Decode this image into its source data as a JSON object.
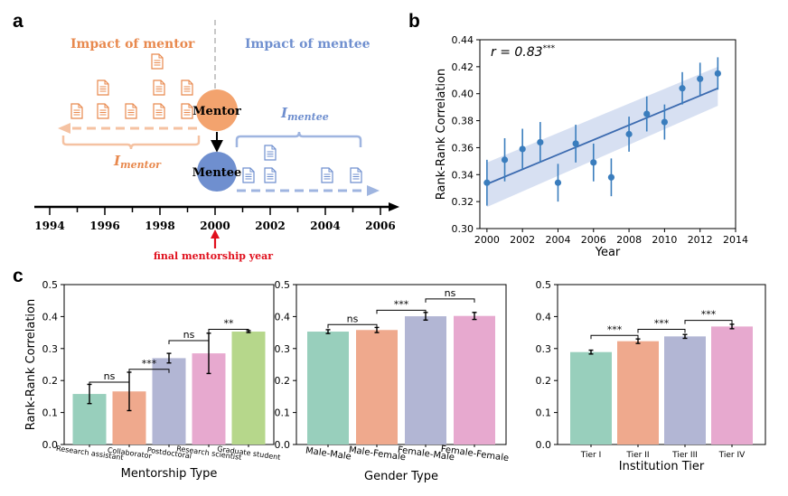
{
  "colors": {
    "mentor_orange": "#e8894e",
    "mentor_light": "#f5c2a2",
    "mentee_blue": "#6f8fcf",
    "mentee_light": "#9fb5e0",
    "line_blue": "#3c6bb0",
    "band": "#c9d6ee",
    "point": "#3a7dbd",
    "red": "#e0101d",
    "green": "#98cfbc",
    "salmon": "#efa98d",
    "lavender": "#b2b6d4",
    "pink": "#e7a9cf",
    "lime": "#b6d78b"
  },
  "panels": {
    "a": "a",
    "b": "b",
    "c": "c"
  },
  "diagram": {
    "impact_mentor": "Impact of mentor",
    "impact_mentee": "Impact of mentee",
    "mentor_node": "Mentor",
    "mentee_node": "Mentee",
    "i_mentor_base": "I",
    "i_mentor_sub": "mentor",
    "i_mentee_base": "I",
    "i_mentee_sub": "mentee",
    "years": [
      "1994",
      "1996",
      "1998",
      "2000",
      "2002",
      "2004",
      "2006"
    ],
    "final_year_label": "final mentorship year",
    "paper_icon": "document-icon"
  },
  "chart_data": [
    {
      "id": "b",
      "type": "scatter",
      "annotation": "r = 0.83",
      "annotation_stars": "***",
      "xlabel": "Year",
      "ylabel": "Rank-Rank Correlation",
      "xlim": [
        1999.6,
        2014
      ],
      "ylim": [
        0.3,
        0.44
      ],
      "xticks": [
        2000,
        2002,
        2004,
        2006,
        2008,
        2010,
        2012,
        2014
      ],
      "yticks": [
        "0.30",
        "0.32",
        "0.34",
        "0.36",
        "0.38",
        "0.40",
        "0.42",
        "0.44"
      ],
      "x": [
        2000,
        2001,
        2002,
        2003,
        2004,
        2005,
        2006,
        2007,
        2008,
        2009,
        2010,
        2011,
        2012,
        2013
      ],
      "y": [
        0.334,
        0.351,
        0.359,
        0.364,
        0.334,
        0.363,
        0.349,
        0.338,
        0.37,
        0.385,
        0.379,
        0.404,
        0.411,
        0.415
      ],
      "err": [
        0.017,
        0.016,
        0.015,
        0.015,
        0.014,
        0.014,
        0.014,
        0.014,
        0.013,
        0.013,
        0.013,
        0.012,
        0.012,
        0.012
      ],
      "fit": {
        "x": [
          2000,
          2013
        ],
        "y": [
          0.333,
          0.404
        ]
      },
      "band": {
        "lower": [
          0.316,
          0.391
        ],
        "upper": [
          0.349,
          0.42
        ]
      }
    },
    {
      "id": "c1",
      "type": "bar",
      "xlabel": "Mentorship Type",
      "ylabel": "Rank-Rank Correlation",
      "ylim": [
        0,
        0.5
      ],
      "yticks": [
        "0.0",
        "0.1",
        "0.2",
        "0.3",
        "0.4",
        "0.5"
      ],
      "categories": [
        "Research assistant",
        "Collaborator",
        "Postdoctoral",
        "Research scientist",
        "Graduate student"
      ],
      "values": [
        0.158,
        0.166,
        0.27,
        0.285,
        0.353
      ],
      "err": [
        0.03,
        0.06,
        0.015,
        0.063,
        0.003
      ],
      "colors": [
        "#98cfbc",
        "#efa98d",
        "#b2b6d4",
        "#e7a9cf",
        "#b6d78b"
      ],
      "significance": [
        {
          "from": 0,
          "to": 1,
          "label": "ns",
          "level": 0.195
        },
        {
          "from": 1,
          "to": 2,
          "label": "***",
          "level": 0.235
        },
        {
          "from": 2,
          "to": 3,
          "label": "ns",
          "level": 0.325
        },
        {
          "from": 3,
          "to": 4,
          "label": "**",
          "level": 0.36
        }
      ]
    },
    {
      "id": "c2",
      "type": "bar",
      "xlabel": "Gender Type",
      "ylabel": "",
      "ylim": [
        0,
        0.5
      ],
      "yticks": [
        "0.0",
        "0.1",
        "0.2",
        "0.3",
        "0.4",
        "0.5"
      ],
      "categories": [
        "Male-Male",
        "Male-Female",
        "Female-Male",
        "Female-Female"
      ],
      "values": [
        0.353,
        0.358,
        0.401,
        0.402
      ],
      "err": [
        0.006,
        0.008,
        0.012,
        0.011
      ],
      "colors": [
        "#98cfbc",
        "#efa98d",
        "#b2b6d4",
        "#e7a9cf"
      ],
      "significance": [
        {
          "from": 0,
          "to": 1,
          "label": "ns",
          "level": 0.375
        },
        {
          "from": 1,
          "to": 2,
          "label": "***",
          "level": 0.42
        },
        {
          "from": 2,
          "to": 3,
          "label": "ns",
          "level": 0.455
        }
      ]
    },
    {
      "id": "c3",
      "type": "bar",
      "xlabel": "Institution Tier",
      "ylabel": "",
      "ylim": [
        0,
        0.5
      ],
      "yticks": [
        "0.0",
        "0.1",
        "0.2",
        "0.3",
        "0.4",
        "0.5"
      ],
      "categories": [
        "Tier I",
        "Tier II",
        "Tier III",
        "Tier IV"
      ],
      "values": [
        0.289,
        0.323,
        0.338,
        0.369
      ],
      "err": [
        0.006,
        0.007,
        0.006,
        0.007
      ],
      "colors": [
        "#98cfbc",
        "#efa98d",
        "#b2b6d4",
        "#e7a9cf"
      ],
      "significance": [
        {
          "from": 0,
          "to": 1,
          "label": "***",
          "level": 0.341
        },
        {
          "from": 1,
          "to": 2,
          "label": "***",
          "level": 0.36
        },
        {
          "from": 2,
          "to": 3,
          "label": "***",
          "level": 0.388
        }
      ]
    }
  ]
}
